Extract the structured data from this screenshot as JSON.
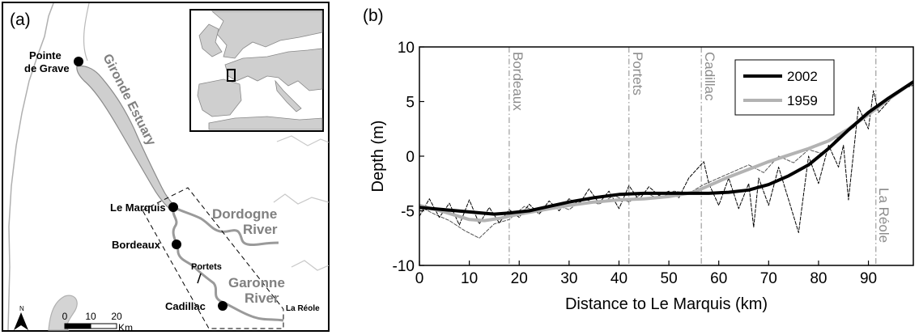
{
  "panel_a": {
    "label": "(a)",
    "places": {
      "pointe_de_grave_line1": "Pointe",
      "pointe_de_grave_line2": "de Grave",
      "le_marquis": "Le Marquis",
      "bordeaux": "Bordeaux",
      "portets": "Portets",
      "cadillac": "Cadillac",
      "la_reole": "La Réole"
    },
    "features": {
      "gironde_estuary": "Gironde Estuary",
      "dordogne_line1": "Dordogne",
      "dordogne_line2": "River",
      "garonne_line1": "Garonne",
      "garonne_line2": "River"
    },
    "scale_bar": {
      "tick0": "0",
      "tick1": "10",
      "tick2": "20",
      "unit": "Km"
    },
    "north_label": "N",
    "colors": {
      "river": "#9a9a9a",
      "estuary_fill": "#cfcfcf",
      "border": "#bdbdbd",
      "point": "#000000"
    }
  },
  "panel_b": {
    "label": "(b)",
    "colors": {
      "s2002": "#000000",
      "s1959": "#b3b3b3",
      "town_line": "#8a8a8a",
      "town_label": "#8c8c8c"
    }
  },
  "chart_data": {
    "type": "line",
    "title": "",
    "xlabel": "Distance to Le Marquis (km)",
    "ylabel": "Depth (m)",
    "xlim": [
      0,
      99
    ],
    "ylim": [
      -10,
      10
    ],
    "xticks": [
      0,
      10,
      20,
      30,
      40,
      50,
      60,
      70,
      80,
      90
    ],
    "yticks": [
      -10,
      -5,
      0,
      5,
      10
    ],
    "grid": false,
    "legend_position": "top-right",
    "series": [
      {
        "name": "2002",
        "style": "thick",
        "x": [
          0,
          5,
          10,
          15,
          18,
          22,
          26,
          30,
          35,
          40,
          45,
          50,
          55,
          58,
          62,
          66,
          70,
          74,
          78,
          82,
          86,
          90,
          94,
          99
        ],
        "values": [
          -4.7,
          -4.9,
          -5.1,
          -5.3,
          -5.2,
          -5.0,
          -4.6,
          -4.2,
          -3.8,
          -3.5,
          -3.4,
          -3.4,
          -3.4,
          -3.4,
          -3.3,
          -3.1,
          -2.6,
          -1.8,
          -0.8,
          0.7,
          2.4,
          4.0,
          5.3,
          6.8
        ]
      },
      {
        "name": "1959",
        "style": "thick",
        "x": [
          0,
          5,
          10,
          13,
          16,
          20,
          25,
          30,
          35,
          40,
          45,
          50,
          55,
          58,
          62,
          66,
          70,
          74,
          78,
          82,
          86,
          90,
          94,
          99
        ],
        "values": [
          -4.5,
          -5.1,
          -5.8,
          -5.9,
          -5.7,
          -5.3,
          -4.9,
          -4.5,
          -4.2,
          -4.0,
          -3.9,
          -3.7,
          -3.3,
          -2.7,
          -1.9,
          -1.2,
          -0.5,
          0.1,
          0.7,
          1.4,
          2.5,
          3.8,
          5.2,
          6.8
        ]
      },
      {
        "name": "2002 raw",
        "style": "dashed-thin",
        "x": [
          0,
          2,
          4,
          6,
          8,
          10,
          12,
          14,
          16,
          18,
          20,
          22,
          24,
          26,
          28,
          30,
          32,
          34,
          36,
          38,
          40,
          42,
          44,
          46,
          48,
          50,
          52,
          54,
          56,
          57,
          58,
          60,
          62,
          64,
          66,
          67,
          68,
          70,
          72,
          74,
          76,
          78,
          80,
          82,
          84,
          85,
          86,
          88,
          90,
          91,
          92,
          94,
          96,
          99
        ],
        "values": [
          -5.5,
          -3.9,
          -5.6,
          -4.3,
          -6.3,
          -4.0,
          -6.2,
          -4.7,
          -6.1,
          -4.9,
          -5.6,
          -4.4,
          -5.3,
          -4.1,
          -5.0,
          -3.9,
          -4.4,
          -3.0,
          -4.3,
          -3.2,
          -4.8,
          -2.7,
          -4.0,
          -2.8,
          -3.6,
          -3.2,
          -3.8,
          -2.0,
          -1.0,
          -0.5,
          -2.5,
          -4.5,
          -2.0,
          -4.8,
          -2.5,
          -6.5,
          -2.0,
          -4.5,
          -1.0,
          -4.0,
          -7.0,
          0.0,
          -2.5,
          1.0,
          -1.0,
          1.0,
          -4.0,
          4.5,
          2.5,
          6.0,
          4.0,
          5.0,
          6.0,
          6.5
        ]
      },
      {
        "name": "1959 raw",
        "style": "dashed-thin",
        "x": [
          0,
          3,
          6,
          9,
          12,
          15,
          18,
          21,
          24,
          27,
          30,
          33,
          36,
          39,
          42,
          45,
          48,
          51,
          54,
          57,
          60,
          63,
          66,
          69,
          72,
          75,
          78,
          81,
          84,
          87,
          90,
          93,
          96,
          99
        ],
        "values": [
          -4.6,
          -5.3,
          -5.9,
          -6.8,
          -7.5,
          -6.2,
          -5.8,
          -4.6,
          -5.2,
          -4.4,
          -4.9,
          -3.9,
          -4.4,
          -3.6,
          -4.2,
          -3.3,
          -3.9,
          -3.2,
          -3.4,
          -2.6,
          -2.0,
          -1.4,
          -0.8,
          -1.5,
          0.0,
          -0.6,
          0.6,
          0.2,
          1.8,
          2.6,
          4.0,
          4.9,
          5.8,
          6.8
        ]
      }
    ],
    "town_lines": [
      {
        "label": "Bordeaux",
        "x": 18
      },
      {
        "label": "Portets",
        "x": 42
      },
      {
        "label": "Cadillac",
        "x": 56.5
      },
      {
        "label": "La Réole",
        "x": 91.5
      }
    ]
  }
}
